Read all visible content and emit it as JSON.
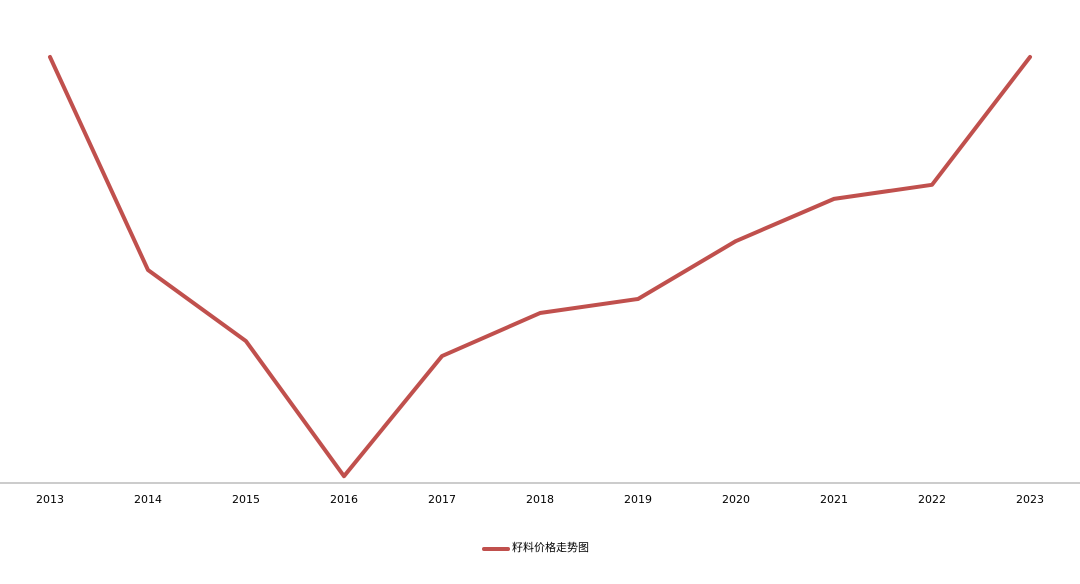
{
  "chart_data": {
    "type": "line",
    "categories": [
      "2013",
      "2014",
      "2015",
      "2016",
      "2017",
      "2018",
      "2019",
      "2020",
      "2021",
      "2022",
      "2023"
    ],
    "series": [
      {
        "name": "籽料价格走势图",
        "color": "#c0504d",
        "values": [
          100,
          50,
          33.3,
          1.6,
          29.8,
          39.9,
          43.2,
          56.8,
          66.7,
          70,
          100
        ]
      }
    ],
    "ylim": [
      0,
      100
    ],
    "legend": "bottom"
  }
}
